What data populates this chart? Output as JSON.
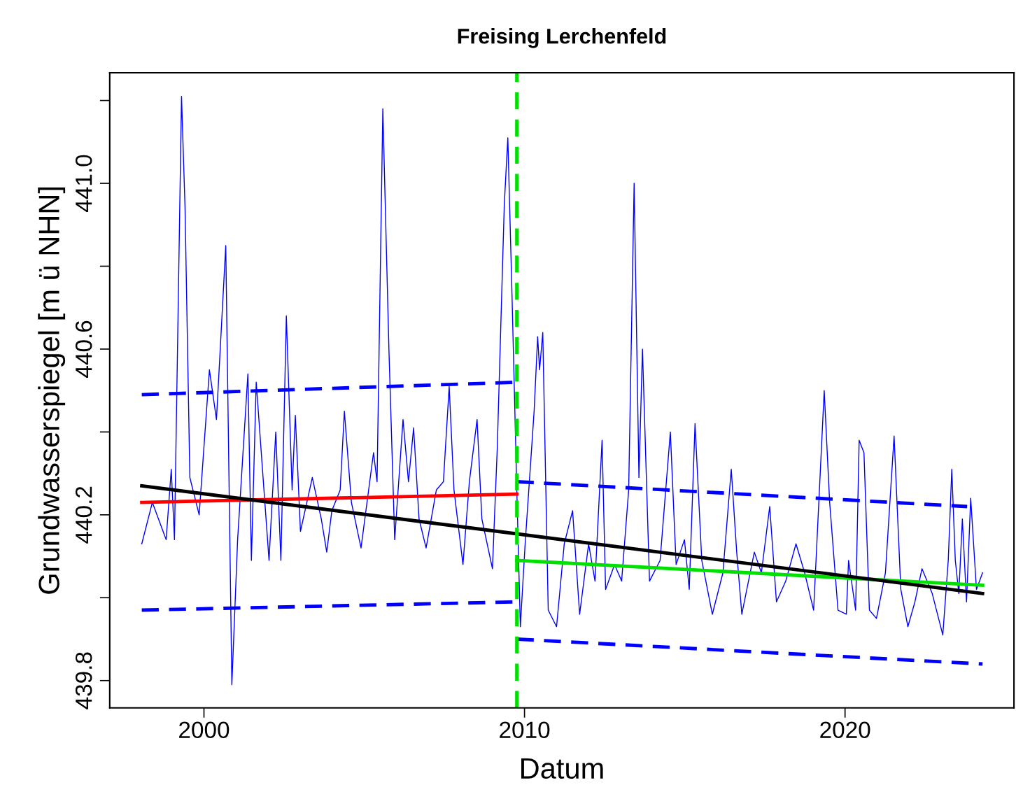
{
  "chart_data": {
    "type": "line",
    "title": "Freising Lerchenfeld",
    "xlabel": "Datum",
    "ylabel": "Grundwasserspiegel [m ü NHN]",
    "xlim": [
      1997.06,
      2025.27
    ],
    "ylim": [
      439.734,
      441.267
    ],
    "xticks": [
      2000,
      2010,
      2020
    ],
    "yticks": [
      439.8,
      {
        "value": 440.0,
        "label": null
      },
      440.2,
      {
        "value": 440.4,
        "label": null
      },
      440.6,
      {
        "value": 440.8,
        "label": null
      },
      {
        "value": 441.0,
        "label": "441.0"
      },
      {
        "value": 441.2,
        "label": null
      }
    ],
    "grid": false,
    "legend": false,
    "marker": "none",
    "ref_lines": [
      {
        "axis": "x",
        "value": 2009.76,
        "color": "#00e000",
        "line_style": "dashed"
      }
    ],
    "series": [
      {
        "color": "#0000ff",
        "line_style": "solid",
        "x": [
          1998.06,
          1998.39,
          1998.82,
          1998.98,
          1999.08,
          1999.3,
          1999.41,
          1999.56,
          1999.85,
          2000.17,
          2000.39,
          2000.68,
          2000.87,
          2001.05,
          2001.37,
          2001.48,
          2001.63,
          2002.03,
          2002.24,
          2002.4,
          2002.57,
          2002.75,
          2002.85,
          2003.01,
          2003.38,
          2003.66,
          2003.83,
          2003.99,
          2004.25,
          2004.38,
          2004.6,
          2004.9,
          2005.29,
          2005.4,
          2005.58,
          2005.77,
          2005.95,
          2006.21,
          2006.38,
          2006.54,
          2006.71,
          2006.93,
          2007.25,
          2007.47,
          2007.65,
          2007.8,
          2008.08,
          2008.28,
          2008.52,
          2008.67,
          2009.0,
          2009.15,
          2009.37,
          2009.48,
          2009.61,
          2009.76,
          2009.87,
          2010.02,
          2010.3,
          2010.41,
          2010.47,
          2010.57,
          2010.74,
          2011.0,
          2011.24,
          2011.5,
          2011.72,
          2012.0,
          2012.2,
          2012.42,
          2012.53,
          2012.81,
          2013.03,
          2013.25,
          2013.42,
          2013.57,
          2013.68,
          2013.9,
          2014.23,
          2014.55,
          2014.73,
          2014.99,
          2015.14,
          2015.32,
          2015.53,
          2015.86,
          2016.19,
          2016.45,
          2016.62,
          2016.78,
          2017.17,
          2017.39,
          2017.65,
          2017.86,
          2018.15,
          2018.47,
          2018.74,
          2019.02,
          2019.35,
          2019.52,
          2019.78,
          2020.04,
          2020.11,
          2020.33,
          2020.44,
          2020.59,
          2020.76,
          2020.98,
          2021.26,
          2021.53,
          2021.74,
          2021.96,
          2022.18,
          2022.4,
          2022.72,
          2023.05,
          2023.22,
          2023.33,
          2023.44,
          2023.55,
          2023.66,
          2023.79,
          2023.92,
          2024.1,
          2024.29
        ],
        "values": [
          440.13,
          440.23,
          440.14,
          440.31,
          440.14,
          441.21,
          440.94,
          440.29,
          440.2,
          440.55,
          440.43,
          440.85,
          439.79,
          440.14,
          440.54,
          440.09,
          440.52,
          440.09,
          440.4,
          440.09,
          440.68,
          440.26,
          440.44,
          440.16,
          440.29,
          440.19,
          440.11,
          440.21,
          440.26,
          440.45,
          440.23,
          440.12,
          440.35,
          440.28,
          441.18,
          440.6,
          440.14,
          440.43,
          440.28,
          440.41,
          440.19,
          440.12,
          440.26,
          440.28,
          440.51,
          440.26,
          440.08,
          440.28,
          440.43,
          440.19,
          440.07,
          440.36,
          440.95,
          441.11,
          440.73,
          440.26,
          439.93,
          440.13,
          440.45,
          440.63,
          440.55,
          440.64,
          439.97,
          439.93,
          440.13,
          440.21,
          439.96,
          440.13,
          440.04,
          440.38,
          440.02,
          440.08,
          440.04,
          440.26,
          441.0,
          440.29,
          440.6,
          440.04,
          440.09,
          440.4,
          440.08,
          440.14,
          440.02,
          440.42,
          440.09,
          439.96,
          440.06,
          440.31,
          440.11,
          439.96,
          440.11,
          440.06,
          440.22,
          439.99,
          440.04,
          440.13,
          440.06,
          439.97,
          440.5,
          440.23,
          439.97,
          439.96,
          440.09,
          439.97,
          440.38,
          440.35,
          439.97,
          439.95,
          440.06,
          440.39,
          440.02,
          439.93,
          439.99,
          440.07,
          440.01,
          439.91,
          440.09,
          440.31,
          440.09,
          440.01,
          440.19,
          439.99,
          440.24,
          440.02,
          440.06
        ]
      },
      {
        "color": "#ff0000",
        "line_style": "solid",
        "x": [
          1998.06,
          2009.76
        ],
        "values": [
          440.23,
          440.25
        ]
      },
      {
        "color": "#0000ff",
        "line_style": "dashed",
        "x": [
          1998.06,
          2009.76
        ],
        "values": [
          440.49,
          440.52
        ]
      },
      {
        "color": "#0000ff",
        "line_style": "dashed",
        "x": [
          1998.06,
          2009.76
        ],
        "values": [
          439.97,
          439.99
        ]
      },
      {
        "color": "#0000ff",
        "line_style": "dashed",
        "x": [
          2009.76,
          2023.81
        ],
        "values": [
          440.28,
          440.22
        ]
      },
      {
        "color": "#0000ff",
        "line_style": "dashed",
        "x": [
          2009.76,
          2024.29
        ],
        "values": [
          439.9,
          439.84
        ]
      },
      {
        "color": "#00e000",
        "line_style": "solid",
        "x": [
          2009.76,
          2024.29
        ],
        "values": [
          440.09,
          440.03
        ]
      },
      {
        "color": "#000000",
        "line_style": "solid",
        "x": [
          1998.06,
          2024.29
        ],
        "values": [
          440.27,
          440.01
        ]
      }
    ]
  }
}
